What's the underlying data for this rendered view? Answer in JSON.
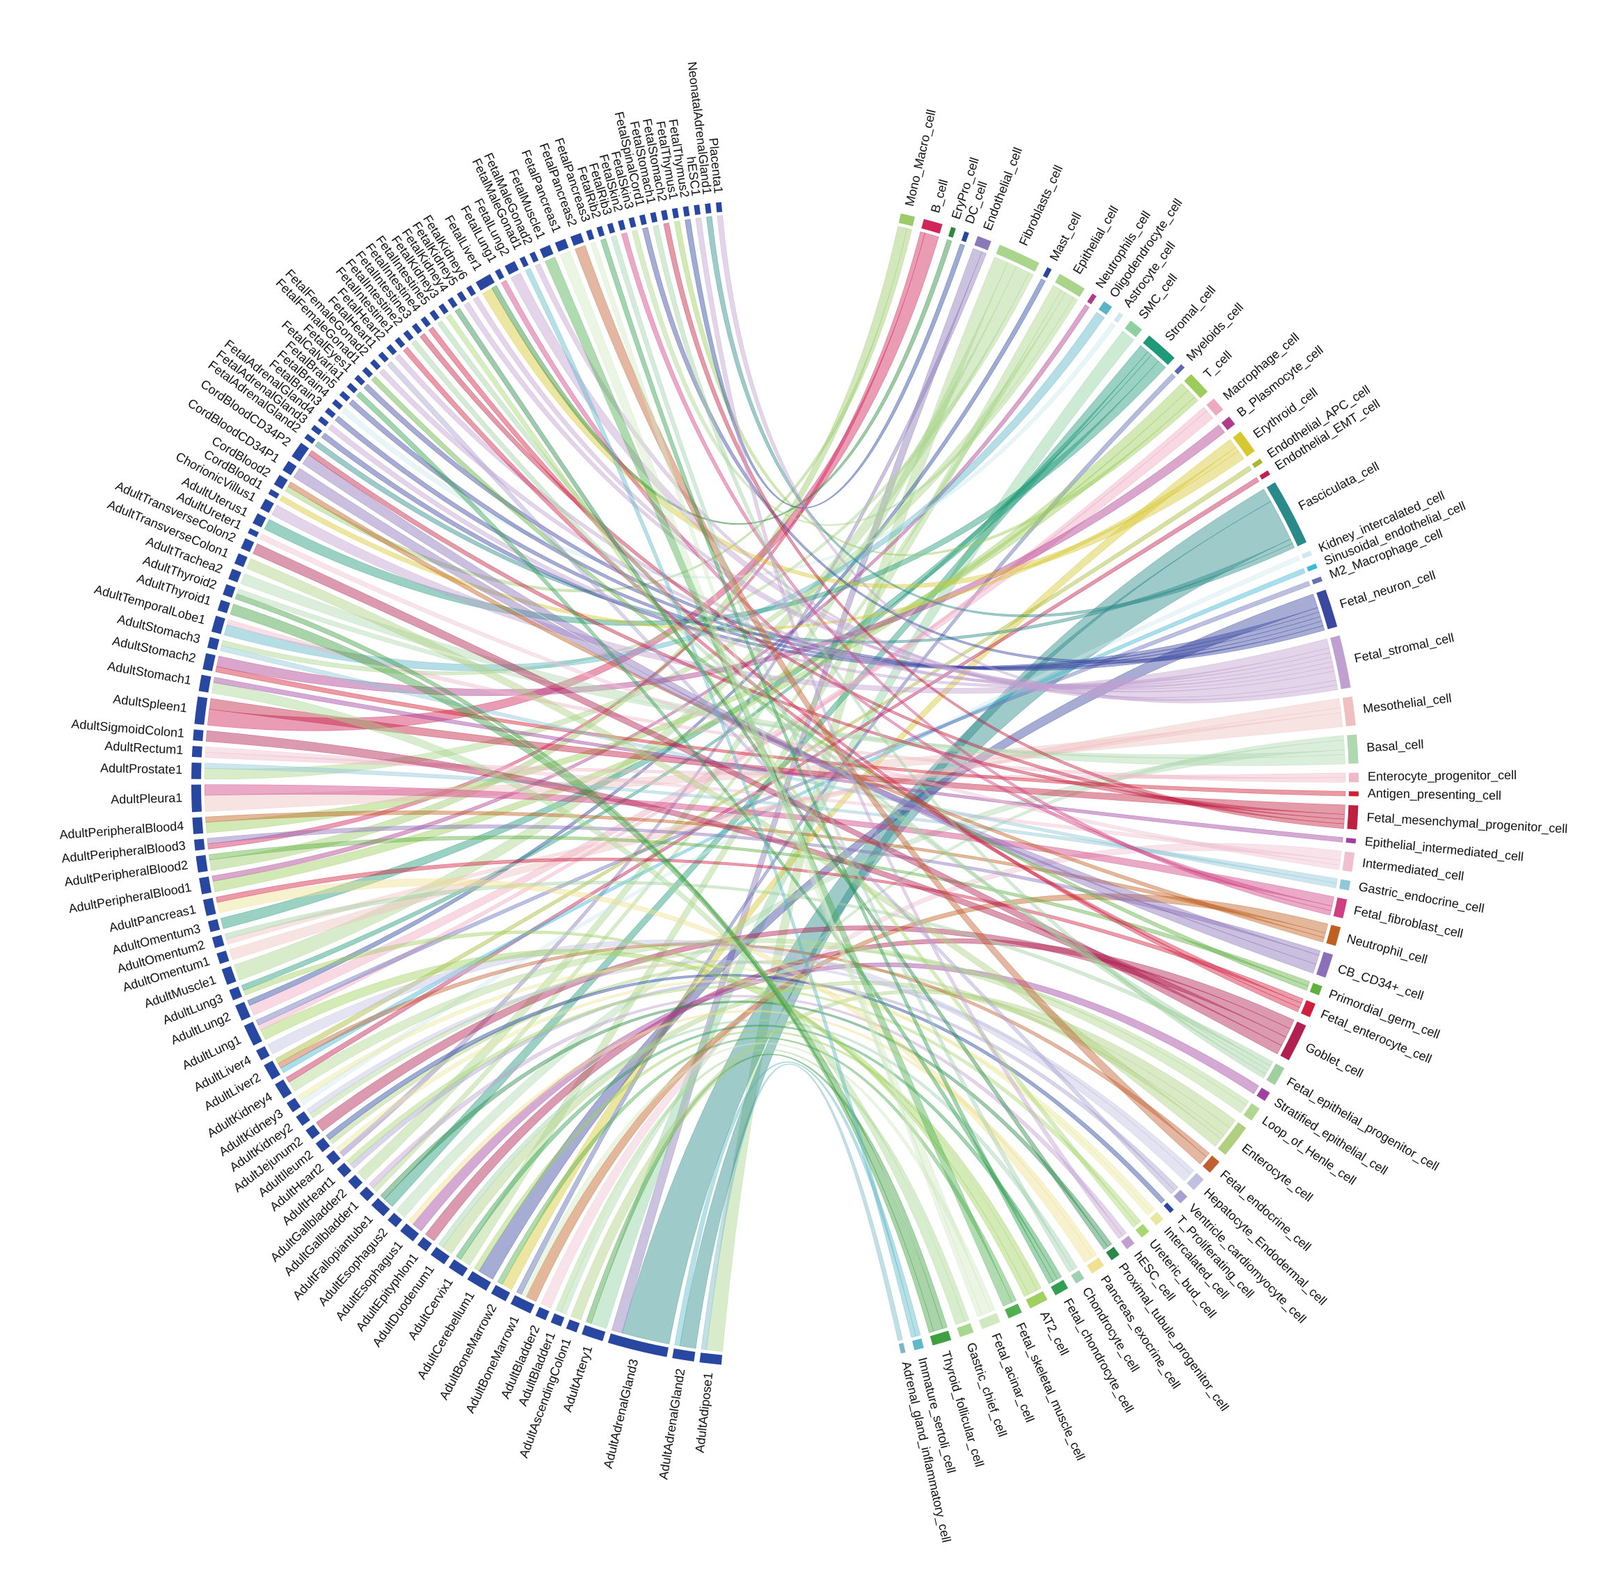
{
  "chart_data": {
    "type": "chord",
    "tissue_color": "#2747a0",
    "tissues": [
      {
        "name": "AdultAdipose1",
        "links": {
          "Fibroblasts_cell": 3,
          "Adrenal_gland_inflammatory_cell": 1
        }
      },
      {
        "name": "AdultAdrenalGland2",
        "links": {
          "Fasciculata_cell": 3,
          "Immature_sertoli_cell": 1
        }
      },
      {
        "name": "AdultAdrenalGland3",
        "links": {
          "Fasciculata_cell": 9,
          "Endothelial_cell": 2
        }
      },
      {
        "name": "AdultArtery1",
        "links": {
          "SMC_cell": 3,
          "Thyroid_follicular_cell": 1
        }
      },
      {
        "name": "AdultAscendingColon1",
        "links": {
          "Enterocyte_cell": 2
        }
      },
      {
        "name": "AdultBladder1",
        "links": {
          "Basal_cell": 1,
          "Gastric_chief_cell": 1
        }
      },
      {
        "name": "AdultBladder2",
        "links": {
          "Intermediated_cell": 2
        }
      },
      {
        "name": "AdultBoneMarrow1",
        "links": {
          "Neutrophil_cell": 2,
          "Fetal_acinar_cell": 1,
          "Myeloids_cell": 1
        }
      },
      {
        "name": "AdultBoneMarrow2",
        "links": {
          "Erythroid_cell": 2,
          "Fetal_skeletal_muscle_cell": 1
        }
      },
      {
        "name": "AdultCerebellum1",
        "links": {
          "Fetal_neuron_cell": 3,
          "AT2_cell": 1
        }
      },
      {
        "name": "AdultCervix1",
        "links": {
          "Epithelial_cell": 2,
          "Fetal_chondrocyte_cell": 1
        }
      },
      {
        "name": "AdultDuodenum1",
        "links": {
          "Enterocyte_cell": 2,
          "Chondrocyte_cell": 1
        }
      },
      {
        "name": "AdultEpityphlon1",
        "links": {
          "Goblet_cell": 2
        }
      },
      {
        "name": "AdultEsophagus1",
        "links": {
          "Stratified_epithelial_cell": 2,
          "Pancreas_exocrine_cell": 1
        }
      },
      {
        "name": "AdultEsophagus2",
        "links": {
          "Basal_cell": 2
        }
      },
      {
        "name": "AdultFallopiantube1",
        "links": {
          "Stromal_cell": 2,
          "Proximal_tubule_progenitor_cell": 1
        }
      },
      {
        "name": "AdultGallbladder1",
        "links": {
          "Epithelial_cell": 1,
          "hESC_cell": 1
        }
      },
      {
        "name": "AdultGallbladder2",
        "links": {
          "Fibroblasts_cell": 2
        }
      },
      {
        "name": "AdultHeart1",
        "links": {
          "Ventricle_cardiomyocyte_cell": 1,
          "Ureteric_bud_cell": 1
        }
      },
      {
        "name": "AdultHeart2",
        "links": {
          "Endothelial_cell": 1,
          "Intercalated_cell": 1
        }
      },
      {
        "name": "AdultIleum2",
        "links": {
          "Enterocyte_cell": 1,
          "T_Proliferating_cell": 1
        }
      },
      {
        "name": "AdultJejunum2",
        "links": {
          "Goblet_cell": 2
        }
      },
      {
        "name": "AdultKidney2",
        "links": {
          "Loop_of_Henle_cell": 1,
          "Hepatocyte_Endodermal_cell": 1
        }
      },
      {
        "name": "AdultKidney3",
        "links": {
          "Kidney_intercalated_cell": 1,
          "Intercalated_cell": 1
        }
      },
      {
        "name": "AdultKidney4",
        "links": {
          "Loop_of_Henle_cell": 2,
          "Endothelial_EMT_cell": 1
        }
      },
      {
        "name": "AdultLiver2",
        "links": {
          "Sinusoidal_endothelial_cell": 1,
          "Fetal_endocrine_cell": 1,
          "Endothelial_APC_cell": 1
        }
      },
      {
        "name": "AdultLiver4",
        "links": {
          "Hepatocyte_Endodermal_cell": 2
        }
      },
      {
        "name": "AdultLung1",
        "links": {
          "AT2_cell": 2,
          "Macrophage_cell": 1,
          "M2_Macrophage_cell": 1
        }
      },
      {
        "name": "AdultLung2",
        "links": {
          "Macrophage_cell": 2,
          "Mast_cell": 1
        }
      },
      {
        "name": "AdultLung3",
        "links": {
          "AT2_cell": 1,
          "Stromal_cell": 1
        }
      },
      {
        "name": "AdultMuscle1",
        "links": {
          "Fibroblasts_cell": 3
        }
      },
      {
        "name": "AdultOmentum1",
        "links": {
          "Mesothelial_cell": 2
        }
      },
      {
        "name": "AdultOmentum2",
        "links": {
          "Mesothelial_cell": 1,
          "Fetal_epithelial_progenitor_cell": 1
        }
      },
      {
        "name": "AdultOmentum3",
        "links": {
          "Stromal_cell": 2
        }
      },
      {
        "name": "AdultPancreas1",
        "links": {
          "Pancreas_exocrine_cell": 2,
          "Fetal_enterocyte_cell": 1
        }
      },
      {
        "name": "AdultPeripheralBlood1",
        "links": {
          "T_cell": 2,
          "Neutrophils_cell": 1
        }
      },
      {
        "name": "AdultPeripheralBlood2",
        "links": {
          "Mono_Macro_cell": 2,
          "Primordial_germ_cell": 1
        }
      },
      {
        "name": "AdultPeripheralBlood3",
        "links": {
          "B_cell": 1,
          "CB_CD34+_cell": 1
        }
      },
      {
        "name": "AdultPeripheralBlood4",
        "links": {
          "T_cell": 2,
          "Neutrophil_cell": 1
        }
      },
      {
        "name": "AdultPleura1",
        "links": {
          "Mesothelial_cell": 3,
          "Fetal_fibroblast_cell": 2
        }
      },
      {
        "name": "AdultProstate1",
        "links": {
          "Epithelial_cell": 2,
          "Gastric_endocrine_cell": 1
        }
      },
      {
        "name": "AdultRectum1",
        "links": {
          "Enterocyte_progenitor_cell": 1,
          "Intermediated_cell": 1
        }
      },
      {
        "name": "AdultSigmoidColon1",
        "links": {
          "Goblet_cell": 2
        }
      },
      {
        "name": "AdultSpleen1",
        "links": {
          "B_cell": 3,
          "Fetal_mesenchymal_progenitor_cell": 2
        }
      },
      {
        "name": "AdultStomach1",
        "links": {
          "Gastric_chief_cell": 2,
          "Epithelial_intermediated_cell": 1
        }
      },
      {
        "name": "AdultStomach2",
        "links": {
          "Antigen_presenting_cell": 1,
          "B_Plasmocyte_cell": 2
        }
      },
      {
        "name": "AdultStomach3",
        "links": {
          "Gastric_endocrine_cell": 1,
          "Fibroblasts_cell": 1
        }
      },
      {
        "name": "AdultTemporalLobe1",
        "links": {
          "Oligodendrocyte_cell": 2,
          "Enterocyte_progenitor_cell": 1
        }
      },
      {
        "name": "AdultThyroid1",
        "links": {
          "Thyroid_follicular_cell": 2
        }
      },
      {
        "name": "AdultThyroid2",
        "links": {
          "Thyroid_follicular_cell": 1,
          "Basal_cell": 1
        }
      },
      {
        "name": "AdultTrachea2",
        "links": {
          "Basal_cell": 2
        }
      },
      {
        "name": "AdultTransverseColon1",
        "links": {
          "Enterocyte_cell": 2
        }
      },
      {
        "name": "AdultTransverseColon2",
        "links": {
          "Goblet_cell": 2
        }
      },
      {
        "name": "AdultUreter1",
        "links": {
          "Intermediated_cell": 1
        }
      },
      {
        "name": "AdultUterus1",
        "links": {
          "Stromal_cell": 2
        }
      },
      {
        "name": "ChorionicVillus1",
        "links": {
          "Fetal_stromal_cell": 2
        }
      },
      {
        "name": "CordBlood1",
        "links": {
          "Erythroid_cell": 1
        }
      },
      {
        "name": "CordBlood2",
        "links": {
          "Mono_Macro_cell": 1,
          "Neutrophil_cell": 1
        }
      },
      {
        "name": "CordBloodCD34P1",
        "links": {
          "CB_CD34+_cell": 2
        }
      },
      {
        "name": "CordBloodCD34P2",
        "links": {
          "CB_CD34+_cell": 2,
          "Fetal_mesenchymal_progenitor_cell": 1
        }
      },
      {
        "name": "FetalAdrenalGland2",
        "links": {
          "Fasciculata_cell": 1
        }
      },
      {
        "name": "FetalAdrenalGland3",
        "links": {
          "Fetal_neuron_cell": 1
        }
      },
      {
        "name": "FetalAdrenalGland4",
        "links": {
          "Fetal_stromal_cell": 1
        }
      },
      {
        "name": "FetalBrain3",
        "links": {
          "Fetal_neuron_cell": 1
        }
      },
      {
        "name": "FetalBrain4",
        "links": {
          "Astrocyte_cell": 1
        }
      },
      {
        "name": "FetalBrain5",
        "links": {
          "Fetal_neuron_cell": 1
        }
      },
      {
        "name": "FetalCalvaria1",
        "links": {
          "Fetal_chondrocyte_cell": 1
        }
      },
      {
        "name": "FetalEyes1",
        "links": {
          "Fetal_neuron_cell": 1
        }
      },
      {
        "name": "FetalFemaleGonad1",
        "links": {
          "Primordial_germ_cell": 1
        }
      },
      {
        "name": "FetalFemaleGonad2",
        "links": {
          "Fetal_stromal_cell": 1
        }
      },
      {
        "name": "FetalHeart1",
        "links": {
          "Ventricle_cardiomyocyte_cell": 1
        }
      },
      {
        "name": "FetalHeart2",
        "links": {
          "Fetal_stromal_cell": 1
        }
      },
      {
        "name": "FetalIntestine1",
        "links": {
          "Fetal_enterocyte_cell": 1
        }
      },
      {
        "name": "FetalIntestine2",
        "links": {
          "Fetal_epithelial_progenitor_cell": 1
        }
      },
      {
        "name": "FetalIntestine3",
        "links": {
          "Fetal_mesenchymal_progenitor_cell": 1
        }
      },
      {
        "name": "FetalIntestine4",
        "links": {
          "Fetal_enterocyte_cell": 1
        }
      },
      {
        "name": "FetalIntestine5",
        "links": {
          "Fetal_epithelial_progenitor_cell": 1
        }
      },
      {
        "name": "FetalKidney3",
        "links": {
          "Ureteric_bud_cell": 1
        }
      },
      {
        "name": "FetalKidney4",
        "links": {
          "Proximal_tubule_progenitor_cell": 1
        }
      },
      {
        "name": "FetalKidney5",
        "links": {
          "Fetal_stromal_cell": 1
        }
      },
      {
        "name": "FetalKidney6",
        "links": {
          "Fetal_stromal_cell": 1
        }
      },
      {
        "name": "FetalLiver1",
        "links": {
          "Erythroid_cell": 2,
          "EryPro_cell": 1
        }
      },
      {
        "name": "FetalLung1",
        "links": {
          "Fetal_fibroblast_cell": 1
        }
      },
      {
        "name": "FetalLung2",
        "links": {
          "Fetal_stromal_cell": 2
        }
      },
      {
        "name": "FetalMaleGonad1",
        "links": {
          "Immature_sertoli_cell": 1
        }
      },
      {
        "name": "FetalMaleGonad2",
        "links": {
          "Fetal_stromal_cell": 1
        }
      },
      {
        "name": "FetalMuscle1",
        "links": {
          "Fetal_skeletal_muscle_cell": 2
        }
      },
      {
        "name": "FetalPancreas1",
        "links": {
          "Fetal_acinar_cell": 2
        }
      },
      {
        "name": "FetalPancreas2",
        "links": {
          "Fetal_endocrine_cell": 2
        }
      },
      {
        "name": "FetalPancreas3",
        "links": {
          "Fetal_acinar_cell": 1
        }
      },
      {
        "name": "FetalRib2",
        "links": {
          "Fetal_chondrocyte_cell": 1
        }
      },
      {
        "name": "FetalRib3",
        "links": {
          "Chondrocyte_cell": 1
        }
      },
      {
        "name": "FetalSkin2",
        "links": {
          "Fetal_fibroblast_cell": 1
        }
      },
      {
        "name": "FetalSkin3",
        "links": {
          "Epithelial_cell": 1
        }
      },
      {
        "name": "FetalSpinalCord1",
        "links": {
          "Fetal_neuron_cell": 1
        }
      },
      {
        "name": "FetalStomach1",
        "links": {
          "Fetal_epithelial_progenitor_cell": 1
        }
      },
      {
        "name": "FetalStomach2",
        "links": {
          "Fetal_mesenchymal_progenitor_cell": 1
        }
      },
      {
        "name": "FetalThymus1",
        "links": {
          "T_cell": 1
        }
      },
      {
        "name": "FetalThymus2",
        "links": {
          "DC_cell": 1
        }
      },
      {
        "name": "hESC1",
        "links": {
          "hESC_cell": 1
        }
      },
      {
        "name": "NeonatalAdrenalGland1",
        "links": {
          "Fasciculata_cell": 1
        }
      },
      {
        "name": "Placenta1",
        "links": {
          "Fetal_stromal_cell": 1
        }
      }
    ],
    "cells": [
      {
        "name": "Mono_Macro_cell",
        "color": "#9ccc6a"
      },
      {
        "name": "B_cell",
        "color": "#d0245a"
      },
      {
        "name": "EryPro_cell",
        "color": "#2a8a3a"
      },
      {
        "name": "DC_cell",
        "color": "#2747a0"
      },
      {
        "name": "Endothelial_cell",
        "color": "#8a78b8"
      },
      {
        "name": "Fibroblasts_cell",
        "color": "#a9d58c"
      },
      {
        "name": "Mast_cell",
        "color": "#2747a0"
      },
      {
        "name": "Epithelial_cell",
        "color": "#a8d58a"
      },
      {
        "name": "Neutrophils_cell",
        "color": "#b03a8c"
      },
      {
        "name": "Oligodendrocyte_cell",
        "color": "#5ab4c8"
      },
      {
        "name": "Astrocyte_cell",
        "color": "#cde8ec"
      },
      {
        "name": "SMC_cell",
        "color": "#8fd0a0"
      },
      {
        "name": "Stromal_cell",
        "color": "#1e9a78"
      },
      {
        "name": "Myeloids_cell",
        "color": "#5a6ab0"
      },
      {
        "name": "T_cell",
        "color": "#9ccc5a"
      },
      {
        "name": "Macrophage_cell",
        "color": "#f0a8c0"
      },
      {
        "name": "B_Plasmocyte_cell",
        "color": "#b03a8c"
      },
      {
        "name": "Erythroid_cell",
        "color": "#d8c830"
      },
      {
        "name": "Endothelial_APC_cell",
        "color": "#a8b830"
      },
      {
        "name": "Endothelial_EMT_cell",
        "color": "#c02050"
      },
      {
        "name": "Fasciculata_cell",
        "color": "#2a8a8a"
      },
      {
        "name": "Kidney_intercalated_cell",
        "color": "#d0e8f0"
      },
      {
        "name": "Sinusoidal_endothelial_cell",
        "color": "#40b8d8"
      },
      {
        "name": "M2_Macrophage_cell",
        "color": "#6a70b8"
      },
      {
        "name": "Fetal_neuron_cell",
        "color": "#3a48a0"
      },
      {
        "name": "Fetal_stromal_cell",
        "color": "#c0a0d0"
      },
      {
        "name": "Mesothelial_cell",
        "color": "#f0c0c0"
      },
      {
        "name": "Basal_cell",
        "color": "#b0d8b0"
      },
      {
        "name": "Enterocyte_progenitor_cell",
        "color": "#f0b8c8"
      },
      {
        "name": "Antigen_presenting_cell",
        "color": "#d02030"
      },
      {
        "name": "Fetal_mesenchymal_progenitor_cell",
        "color": "#c02040"
      },
      {
        "name": "Epithelial_intermediated_cell",
        "color": "#a040a0"
      },
      {
        "name": "Intermediated_cell",
        "color": "#f0c0d0"
      },
      {
        "name": "Gastric_endocrine_cell",
        "color": "#90c8d8"
      },
      {
        "name": "Fetal_fibroblast_cell",
        "color": "#d04080"
      },
      {
        "name": "Neutrophil_cell",
        "color": "#c06020"
      },
      {
        "name": "CB_CD34+_cell",
        "color": "#8a70b8"
      },
      {
        "name": "Primordial_germ_cell",
        "color": "#60b040"
      },
      {
        "name": "Fetal_enterocyte_cell",
        "color": "#d02040"
      },
      {
        "name": "Goblet_cell",
        "color": "#b02050"
      },
      {
        "name": "Fetal_epithelial_progenitor_cell",
        "color": "#a0d0a0"
      },
      {
        "name": "Stratified_epithelial_cell",
        "color": "#a040a0"
      },
      {
        "name": "Loop_of_Henle_cell",
        "color": "#b0d890"
      },
      {
        "name": "Enterocyte_cell",
        "color": "#b0d080"
      },
      {
        "name": "Fetal_endocrine_cell",
        "color": "#c06030"
      },
      {
        "name": "Hepatocyte_Endodermal_cell",
        "color": "#c0c0e0"
      },
      {
        "name": "Ventricle_cardiomyocyte_cell",
        "color": "#a8a0d0"
      },
      {
        "name": "T_Proliferating_cell",
        "color": "#2747a0"
      },
      {
        "name": "Intercalated_cell",
        "color": "#e8e8a0"
      },
      {
        "name": "Ureteric_bud_cell",
        "color": "#a8d870"
      },
      {
        "name": "hESC_cell",
        "color": "#c0a0d0"
      },
      {
        "name": "Proximal_tubule_progenitor_cell",
        "color": "#2a8a4a"
      },
      {
        "name": "Pancreas_exocrine_cell",
        "color": "#f0e090"
      },
      {
        "name": "Chondrocyte_cell",
        "color": "#a0d0b0"
      },
      {
        "name": "Fetal_chondrocyte_cell",
        "color": "#30a050"
      },
      {
        "name": "AT2_cell",
        "color": "#a0d060"
      },
      {
        "name": "Fetal_skeletal_muscle_cell",
        "color": "#50b050"
      },
      {
        "name": "Fetal_acinar_cell",
        "color": "#d0e8c0"
      },
      {
        "name": "Gastric_chief_cell",
        "color": "#a8d890"
      },
      {
        "name": "Thyroid_follicular_cell",
        "color": "#40a040"
      },
      {
        "name": "Immature_sertoli_cell",
        "color": "#60b8c8"
      },
      {
        "name": "Adrenal_gland_inflammatory_cell",
        "color": "#7ab8c8"
      }
    ]
  }
}
